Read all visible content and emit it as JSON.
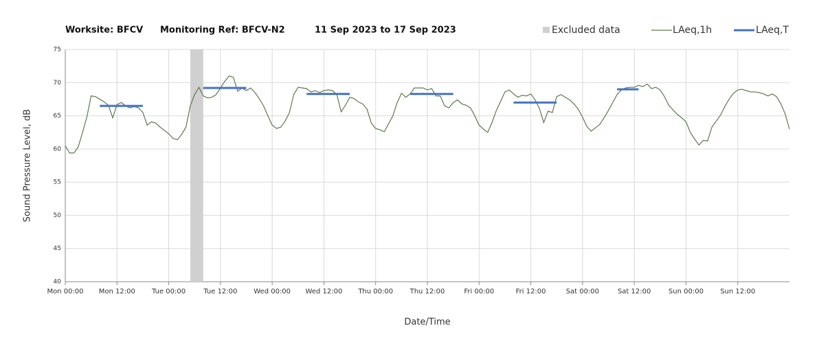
{
  "chart_data": {
    "type": "line",
    "title_parts": [
      "Worksite: BFCV",
      "Monitoring Ref: BFCV-N2",
      "11 Sep 2023 to 17 Sep 2023"
    ],
    "ylabel": "Sound Pressure Level, dB",
    "xlabel": "Date/Time",
    "xlim": [
      0,
      168
    ],
    "ylim": [
      40,
      75
    ],
    "yticks": [
      40,
      45,
      50,
      55,
      60,
      65,
      70,
      75
    ],
    "xticks": [
      {
        "value": 0,
        "label": "Mon 00:00"
      },
      {
        "value": 12,
        "label": "Mon 12:00"
      },
      {
        "value": 24,
        "label": "Tue 00:00"
      },
      {
        "value": 36,
        "label": "Tue 12:00"
      },
      {
        "value": 48,
        "label": "Wed 00:00"
      },
      {
        "value": 60,
        "label": "Wed 12:00"
      },
      {
        "value": 72,
        "label": "Thu 00:00"
      },
      {
        "value": 84,
        "label": "Thu 12:00"
      },
      {
        "value": 96,
        "label": "Fri 00:00"
      },
      {
        "value": 108,
        "label": "Fri 12:00"
      },
      {
        "value": 120,
        "label": "Sat 00:00"
      },
      {
        "value": 132,
        "label": "Sat 12:00"
      },
      {
        "value": 144,
        "label": "Sun 00:00"
      },
      {
        "value": 156,
        "label": "Sun 12:00"
      }
    ],
    "grid": true,
    "excluded": {
      "name": "Excluded data",
      "color": "#d0d0d0",
      "x": [
        29,
        32
      ]
    },
    "series": [
      {
        "name": "LAeq,1h",
        "color": "#5b7a4c",
        "x": [
          0,
          1,
          2,
          3,
          4,
          5,
          6,
          7,
          8,
          9,
          10,
          11,
          12,
          13,
          14,
          15,
          16,
          17,
          18,
          19,
          20,
          21,
          22,
          23,
          24,
          25,
          26,
          27,
          28,
          29,
          30,
          31,
          32,
          33,
          34,
          35,
          36,
          37,
          38,
          39,
          40,
          41,
          42,
          43,
          44,
          45,
          46,
          47,
          48,
          49,
          50,
          51,
          52,
          53,
          54,
          55,
          56,
          57,
          58,
          59,
          60,
          61,
          62,
          63,
          64,
          65,
          66,
          67,
          68,
          69,
          70,
          71,
          72,
          73,
          74,
          75,
          76,
          77,
          78,
          79,
          80,
          81,
          82,
          83,
          84,
          85,
          86,
          87,
          88,
          89,
          90,
          91,
          92,
          93,
          94,
          95,
          96,
          97,
          98,
          99,
          100,
          101,
          102,
          103,
          104,
          105,
          106,
          107,
          108,
          109,
          110,
          111,
          112,
          113,
          114,
          115,
          116,
          117,
          118,
          119,
          120,
          121,
          122,
          123,
          124,
          125,
          126,
          127,
          128,
          129,
          130,
          131,
          132,
          133,
          134,
          135,
          136,
          137,
          138,
          139,
          140,
          141,
          142,
          143,
          144,
          145,
          146,
          147,
          148,
          149,
          150,
          151,
          152,
          153,
          154,
          155,
          156,
          157,
          158,
          159,
          160,
          161,
          162,
          163,
          164,
          165,
          166,
          167,
          168
        ],
        "values": [
          60.5,
          59.4,
          59.4,
          60.3,
          62.5,
          64.8,
          68.0,
          67.9,
          67.5,
          67.1,
          66.6,
          64.7,
          66.7,
          67.0,
          66.5,
          66.2,
          66.4,
          66.2,
          65.5,
          63.6,
          64.1,
          63.9,
          63.3,
          62.8,
          62.3,
          61.6,
          61.4,
          62.2,
          63.3,
          66.5,
          68.2,
          69.3,
          68.0,
          67.7,
          67.8,
          68.2,
          69.2,
          70.2,
          71.0,
          70.8,
          68.7,
          69.2,
          68.8,
          69.2,
          68.5,
          67.6,
          66.5,
          65.0,
          63.6,
          63.1,
          63.3,
          64.2,
          65.5,
          68.2,
          69.3,
          69.2,
          69.1,
          68.6,
          68.8,
          68.5,
          68.8,
          68.9,
          68.8,
          68.2,
          65.6,
          66.6,
          67.8,
          67.6,
          67.1,
          66.8,
          66.0,
          63.9,
          63.1,
          62.9,
          62.6,
          63.8,
          65.0,
          67.0,
          68.4,
          67.8,
          68.3,
          69.2,
          69.2,
          69.2,
          68.9,
          69.1,
          68.0,
          68.0,
          66.5,
          66.2,
          67.0,
          67.4,
          66.8,
          66.6,
          66.2,
          65.0,
          63.6,
          63.0,
          62.5,
          64.0,
          65.8,
          67.2,
          68.6,
          68.9,
          68.3,
          67.8,
          68.1,
          68.0,
          68.3,
          67.4,
          66.1,
          64.0,
          65.7,
          65.5,
          67.9,
          68.2,
          67.8,
          67.4,
          66.8,
          66.0,
          64.8,
          63.4,
          62.7,
          63.2,
          63.7,
          64.7,
          65.8,
          67.0,
          68.2,
          68.9,
          69.2,
          69.3,
          69.3,
          69.6,
          69.4,
          69.8,
          69.1,
          69.3,
          68.9,
          67.9,
          66.6,
          65.9,
          65.2,
          64.7,
          64.1,
          62.5,
          61.5,
          60.6,
          61.3,
          61.2,
          63.3,
          64.2,
          65.1,
          66.4,
          67.5,
          68.4,
          68.9,
          69.0,
          68.8,
          68.6,
          68.6,
          68.5,
          68.3,
          68.0,
          68.3,
          67.9,
          66.8,
          65.3,
          63.0
        ]
      },
      {
        "name": "LAeq,T",
        "color": "#4472c4",
        "segments": [
          {
            "x": [
              8,
              18
            ],
            "value": 66.5
          },
          {
            "x": [
              32,
              42
            ],
            "value": 69.2
          },
          {
            "x": [
              56,
              66
            ],
            "value": 68.3
          },
          {
            "x": [
              80,
              90
            ],
            "value": 68.3
          },
          {
            "x": [
              104,
              114
            ],
            "value": 67.0
          },
          {
            "x": [
              128,
              133
            ],
            "value": 69.0
          }
        ]
      }
    ]
  }
}
